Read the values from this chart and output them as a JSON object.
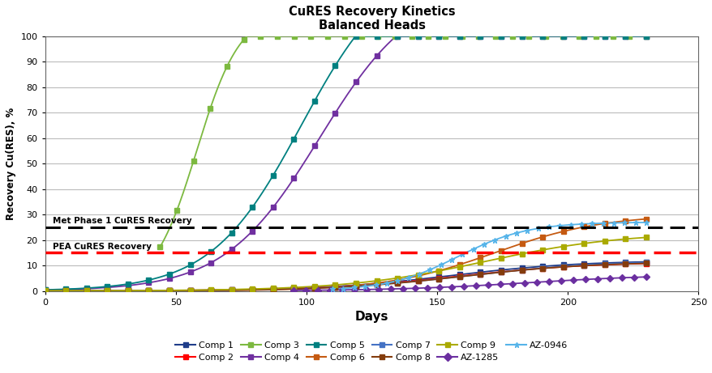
{
  "title_line1": "CuRES Recovery Kinetics",
  "title_line2": "Balanced Heads",
  "xlabel": "Days",
  "ylabel": "Recovery Cu(RES), %",
  "xlim": [
    0,
    250
  ],
  "ylim": [
    0,
    100
  ],
  "xticks": [
    0,
    50,
    100,
    150,
    200,
    250
  ],
  "yticks": [
    0,
    10,
    20,
    30,
    40,
    50,
    60,
    70,
    80,
    90,
    100
  ],
  "hline_black": {
    "y": 25,
    "label": "Met Phase 1 CuRES Recovery"
  },
  "hline_red": {
    "y": 15,
    "label": "PEA CuRES Recovery"
  },
  "series": [
    {
      "name": "Comp 1",
      "color": "#1F3D8A",
      "marker": "s",
      "start_day": 0,
      "end_day": 230,
      "final_value": 12.0,
      "midpoint": 155,
      "steepness": 0.04
    },
    {
      "name": "Comp 2",
      "color": "#FF0000",
      "marker": "s",
      "start_day": 0,
      "end_day": 230,
      "final_value": 11.5,
      "midpoint": 158,
      "steepness": 0.038
    },
    {
      "name": "Comp 3",
      "color": "#7CB940",
      "marker": "s",
      "start_day": 44,
      "end_day": 230,
      "final_value": 110,
      "midpoint": 58,
      "steepness": 0.12
    },
    {
      "name": "Comp 4",
      "color": "#7030A0",
      "marker": "s",
      "start_day": 0,
      "end_day": 230,
      "final_value": 120,
      "midpoint": 105,
      "steepness": 0.055
    },
    {
      "name": "Comp 5",
      "color": "#008080",
      "marker": "s",
      "start_day": 0,
      "end_day": 230,
      "final_value": 130,
      "midpoint": 98,
      "steepness": 0.058
    },
    {
      "name": "Comp 6",
      "color": "#C55A11",
      "marker": "s",
      "start_day": 0,
      "end_day": 230,
      "final_value": 30.0,
      "midpoint": 172,
      "steepness": 0.048
    },
    {
      "name": "Comp 7",
      "color": "#4472C4",
      "marker": "s",
      "start_day": 0,
      "end_day": 230,
      "final_value": 12.0,
      "midpoint": 162,
      "steepness": 0.038
    },
    {
      "name": "Comp 8",
      "color": "#843C0C",
      "marker": "s",
      "start_day": 0,
      "end_day": 230,
      "final_value": 11.5,
      "midpoint": 160,
      "steepness": 0.04
    },
    {
      "name": "Comp 9",
      "color": "#AAAA00",
      "marker": "s",
      "start_day": 0,
      "end_day": 230,
      "final_value": 23.0,
      "midpoint": 168,
      "steepness": 0.038
    },
    {
      "name": "AZ-1285",
      "color": "#6B2FA0",
      "marker": "D",
      "start_day": 95,
      "end_day": 230,
      "final_value": 6.5,
      "midpoint": 185,
      "steepness": 0.038
    },
    {
      "name": "AZ-0946",
      "color": "#56B4E9",
      "marker": "*",
      "start_day": 110,
      "end_day": 230,
      "final_value": 27.0,
      "midpoint": 158,
      "steepness": 0.075
    }
  ],
  "legend_order": [
    "Comp 1",
    "Comp 2",
    "Comp 3",
    "Comp 4",
    "Comp 5",
    "Comp 6",
    "Comp 7",
    "Comp 8",
    "Comp 9",
    "AZ-1285",
    "AZ-0946"
  ]
}
